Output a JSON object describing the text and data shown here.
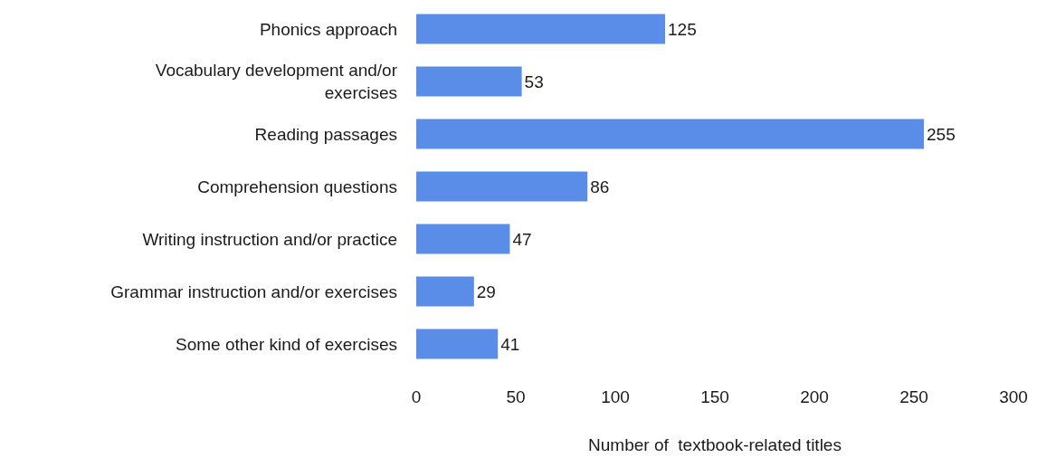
{
  "chart_data": {
    "type": "bar",
    "orientation": "horizontal",
    "categories": [
      "Phonics approach",
      "Vocabulary development and/or exercises",
      "Reading passages",
      "Comprehension questions",
      "Writing instruction and/or practice",
      "Grammar instruction and/or exercises",
      "Some other kind of exercises"
    ],
    "values": [
      125,
      53,
      255,
      86,
      47,
      29,
      41
    ],
    "color": "#5a8de8",
    "xlabel": "Number of  textbook-related titles",
    "xlim": [
      0,
      300
    ],
    "xticks": [
      0,
      50,
      100,
      150,
      200,
      250,
      300
    ],
    "data_labels": true,
    "grid": false
  }
}
